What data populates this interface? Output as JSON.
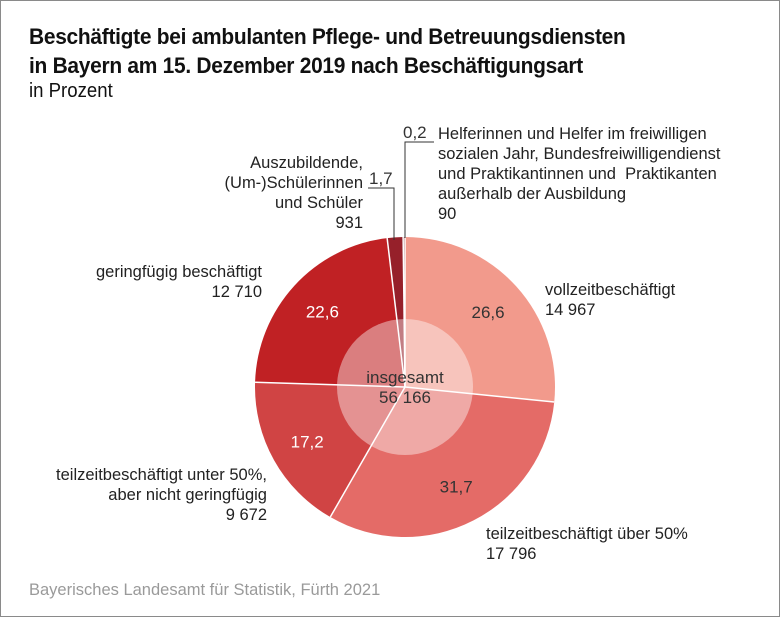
{
  "header": {
    "title_line1": "Beschäftigte bei ambulanten Pflege- und Betreuungsdiensten",
    "title_line2": "in Bayern am 15. Dezember 2019 nach Beschäftigungsart",
    "subtitle": "in Prozent"
  },
  "footer": {
    "source": "Bayerisches Landesamt für Statistik, Fürth 2021"
  },
  "chart_data": {
    "type": "pie",
    "title": "Beschäftigte bei ambulanten Pflege- und Betreuungsdiensten in Bayern am 15. Dezember 2019 nach Beschäftigungsart",
    "subtitle": "in Prozent",
    "center_label": "insgesamt",
    "center_value": "56 166",
    "total": 56166,
    "start": "top",
    "direction": "clockwise",
    "slices": [
      {
        "name": "vollzeitbeschäftigt",
        "percent": 26.6,
        "percent_label": "26,6",
        "count": 14967,
        "count_label": "14 967",
        "color": "#f29a8c",
        "text_color": "#333333"
      },
      {
        "name": "teilzeitbeschäftigt über 50%",
        "percent": 31.7,
        "percent_label": "31,7",
        "count": 17796,
        "count_label": "17 796",
        "color": "#e46b67",
        "text_color": "#333333"
      },
      {
        "name": "teilzeitbeschäftigt unter 50%, aber nicht geringfügig",
        "percent": 17.2,
        "percent_label": "17,2",
        "count": 9672,
        "count_label": "9 672",
        "color": "#d04444",
        "text_color": "#ffffff"
      },
      {
        "name": "geringfügig beschäftigt",
        "percent": 22.6,
        "percent_label": "22,6",
        "count": 12710,
        "count_label": "12 710",
        "color": "#c02124",
        "text_color": "#ffffff"
      },
      {
        "name": "Auszubildende, (Um-)Schülerinnen und Schüler",
        "percent": 1.7,
        "percent_label": "1,7",
        "count": 931,
        "count_label": "931",
        "color": "#96202a",
        "text_color": "#333333"
      },
      {
        "name": "Helferinnen und Helfer im freiwilligen sozialen Jahr, Bundesfreiwilligendienst und Praktikantinnen und Praktikanten außerhalb der Ausbildung",
        "percent": 0.2,
        "percent_label": "0,2",
        "count": 90,
        "count_label": "90",
        "color": "#7a1a22",
        "text_color": "#333333"
      }
    ],
    "labels": {
      "vollzeit": [
        "vollzeitbeschäftigt",
        "14 967"
      ],
      "teilzeit_ueber": [
        "teilzeitbeschäftigt über 50%",
        "17 796"
      ],
      "teilzeit_unter": [
        "teilzeitbeschäftigt unter 50%,",
        "aber nicht geringfügig",
        "9 672"
      ],
      "geringfuegig": [
        "geringfügig beschäftigt",
        "12 710"
      ],
      "azubis": [
        "Auszubildende,",
        "(Um-)Schülerinnen",
        "und Schüler",
        "931"
      ],
      "helfer": [
        "Helferinnen und Helfer im freiwilligen",
        "sozialen Jahr, Bundesfreiwilligendienst",
        "und Praktikantinnen und  Praktikanten",
        "außerhalb der Ausbildung",
        "90"
      ]
    }
  }
}
